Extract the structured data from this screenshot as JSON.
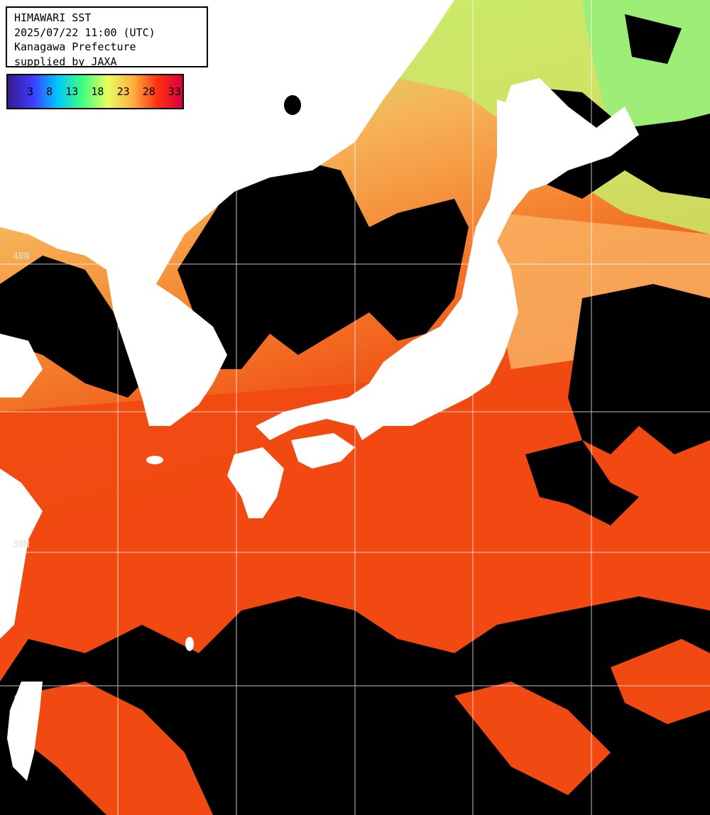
{
  "header": {
    "line1": "HIMAWARI SST",
    "line2": "2025/07/22 11:00 (UTC)",
    "line3": "Kanagawa Prefecture",
    "line4": "supplied by JAXA"
  },
  "legend": {
    "ticks": [
      "3",
      "8",
      "13",
      "18",
      "23",
      "28",
      "33"
    ],
    "colors": [
      "#3a1a8a",
      "#3c3cff",
      "#00c8ff",
      "#40ff80",
      "#e8ff60",
      "#ffb040",
      "#ff3010",
      "#d80040"
    ]
  },
  "grid_labels": {
    "lat_40": "40N",
    "lat_30": "30N"
  },
  "colors": {
    "land": "#ffffff",
    "cloud": "#000000",
    "warm_sea": "#f04a12",
    "mid_sea": "#f89040",
    "cool_sea": "#e8d060",
    "cold_sea": "#a8f070",
    "grid": "#ffffff"
  }
}
